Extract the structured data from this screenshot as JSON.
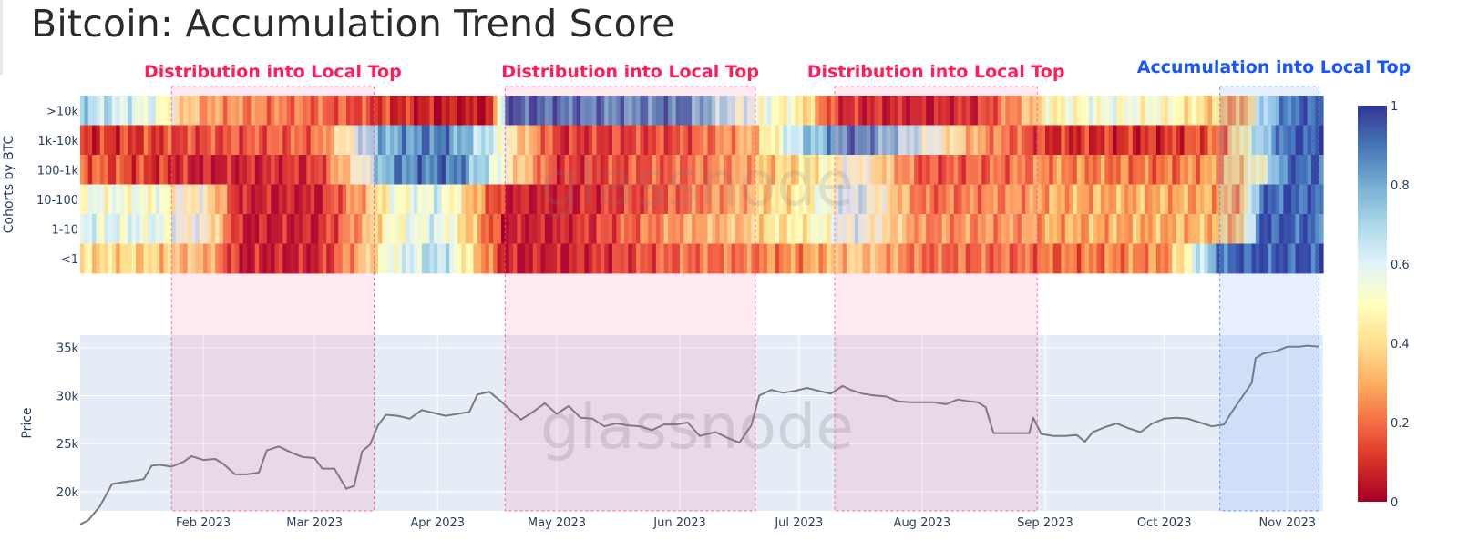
{
  "title": "Bitcoin: Accumulation Trend Score",
  "watermark": "glassnode",
  "colors": {
    "distribution_band": "#ff4f8b",
    "accumulation_band": "#4f86ff",
    "distribution_text": "#ff1c5c",
    "accumulation_text": "#1a56ff",
    "price_line": "#7a7a7a",
    "price_panel_bg": "#e5ecf6"
  },
  "chart_data": [
    {
      "type": "heatmap",
      "ylabel": "Cohorts by BTC",
      "rows": [
        ">10k",
        "1k-10k",
        "100-1k",
        "10-100",
        "1-10",
        "<1"
      ],
      "xrange": [
        "2023-01-01",
        "2023-11-09"
      ],
      "colorscale": "RdYlBu",
      "zrange": [
        0,
        1
      ],
      "colorbar_ticks": [
        "1",
        "0.8",
        "0.6",
        "0.4",
        "0.2",
        "0"
      ],
      "series": [
        {
          "row": ">10k",
          "dates": [
            "2023-01-01",
            "2023-01-20",
            "2023-02-01",
            "2023-03-01",
            "2023-04-01",
            "2023-04-14",
            "2023-04-18",
            "2023-05-01",
            "2023-05-20",
            "2023-06-01",
            "2023-06-15",
            "2023-07-01",
            "2023-07-10",
            "2023-08-01",
            "2023-08-15",
            "2023-09-01",
            "2023-09-15",
            "2023-10-01",
            "2023-10-15",
            "2023-10-20",
            "2023-10-25",
            "2023-11-01",
            "2023-11-09"
          ],
          "values": [
            0.7,
            0.55,
            0.3,
            0.2,
            0.05,
            0.05,
            0.95,
            0.9,
            0.85,
            0.9,
            0.6,
            0.45,
            0.1,
            0.05,
            0.1,
            0.45,
            0.55,
            0.5,
            0.35,
            0.25,
            0.65,
            0.9,
            0.95
          ]
        },
        {
          "row": "1k-10k",
          "dates": [
            "2023-01-01",
            "2023-02-01",
            "2023-03-01",
            "2023-03-15",
            "2023-04-01",
            "2023-04-15",
            "2023-05-01",
            "2023-06-01",
            "2023-06-20",
            "2023-07-01",
            "2023-07-15",
            "2023-08-01",
            "2023-08-15",
            "2023-09-01",
            "2023-10-01",
            "2023-10-15",
            "2023-10-25",
            "2023-11-01",
            "2023-11-09"
          ],
          "values": [
            0.1,
            0.15,
            0.2,
            0.75,
            0.9,
            0.6,
            0.1,
            0.15,
            0.35,
            0.7,
            0.9,
            0.6,
            0.3,
            0.1,
            0.1,
            0.2,
            0.7,
            0.95,
            0.95
          ]
        },
        {
          "row": "100-1k",
          "dates": [
            "2023-01-01",
            "2023-02-01",
            "2023-03-01",
            "2023-03-20",
            "2023-04-05",
            "2023-04-18",
            "2023-05-01",
            "2023-06-01",
            "2023-07-01",
            "2023-07-15",
            "2023-08-01",
            "2023-09-01",
            "2023-10-01",
            "2023-10-15",
            "2023-10-25",
            "2023-11-01",
            "2023-11-09"
          ],
          "values": [
            0.2,
            0.05,
            0.1,
            0.85,
            0.9,
            0.5,
            0.1,
            0.2,
            0.4,
            0.55,
            0.15,
            0.25,
            0.2,
            0.3,
            0.5,
            0.95,
            0.9
          ]
        },
        {
          "row": "10-100",
          "dates": [
            "2023-01-01",
            "2023-02-01",
            "2023-02-10",
            "2023-03-01",
            "2023-03-20",
            "2023-04-01",
            "2023-04-18",
            "2023-05-01",
            "2023-06-01",
            "2023-07-01",
            "2023-07-15",
            "2023-08-01",
            "2023-09-01",
            "2023-10-01",
            "2023-10-20",
            "2023-10-25",
            "2023-11-01",
            "2023-11-09"
          ],
          "values": [
            0.55,
            0.5,
            0.05,
            0.05,
            0.5,
            0.6,
            0.05,
            0.05,
            0.2,
            0.45,
            0.65,
            0.2,
            0.3,
            0.3,
            0.3,
            0.9,
            0.95,
            0.9
          ]
        },
        {
          "row": "1-10",
          "dates": [
            "2023-01-01",
            "2023-02-01",
            "2023-02-10",
            "2023-03-01",
            "2023-03-20",
            "2023-04-01",
            "2023-04-18",
            "2023-05-01",
            "2023-06-01",
            "2023-07-01",
            "2023-07-15",
            "2023-08-01",
            "2023-09-01",
            "2023-10-01",
            "2023-10-20",
            "2023-10-25",
            "2023-11-01",
            "2023-11-09"
          ],
          "values": [
            0.6,
            0.55,
            0.05,
            0.05,
            0.5,
            0.6,
            0.05,
            0.05,
            0.3,
            0.45,
            0.6,
            0.25,
            0.3,
            0.3,
            0.35,
            0.95,
            0.95,
            0.9
          ]
        },
        {
          "row": "<1",
          "dates": [
            "2023-01-01",
            "2023-02-01",
            "2023-02-10",
            "2023-03-01",
            "2023-03-20",
            "2023-04-01",
            "2023-04-18",
            "2023-05-01",
            "2023-06-01",
            "2023-07-01",
            "2023-07-15",
            "2023-08-01",
            "2023-09-01",
            "2023-10-01",
            "2023-10-15",
            "2023-10-20",
            "2023-11-01",
            "2023-11-09"
          ],
          "values": [
            0.4,
            0.35,
            0.05,
            0.05,
            0.55,
            0.7,
            0.05,
            0.05,
            0.2,
            0.25,
            0.4,
            0.2,
            0.2,
            0.25,
            0.9,
            0.95,
            0.95,
            0.95
          ]
        }
      ]
    },
    {
      "type": "line",
      "ylabel": "Price",
      "yticks": [
        {
          "v": 20000,
          "label": "20k"
        },
        {
          "v": 25000,
          "label": "25k"
        },
        {
          "v": 30000,
          "label": "30k"
        },
        {
          "v": 35000,
          "label": "35k"
        }
      ],
      "ylim": [
        18000,
        36300
      ],
      "xlim": [
        "2023-01-01",
        "2023-11-10"
      ],
      "xticks": [
        {
          "date": "2023-02-01",
          "label": "Feb 2023"
        },
        {
          "date": "2023-03-01",
          "label": "Mar 2023"
        },
        {
          "date": "2023-04-01",
          "label": "Apr 2023"
        },
        {
          "date": "2023-05-01",
          "label": "May 2023"
        },
        {
          "date": "2023-06-01",
          "label": "Jun 2023"
        },
        {
          "date": "2023-07-01",
          "label": "Jul 2023"
        },
        {
          "date": "2023-08-01",
          "label": "Aug 2023"
        },
        {
          "date": "2023-09-01",
          "label": "Sep 2023"
        },
        {
          "date": "2023-10-01",
          "label": "Oct 2023"
        },
        {
          "date": "2023-11-01",
          "label": "Nov 2023"
        }
      ],
      "series": [
        {
          "x": [
            "2023-01-01",
            "2023-01-03",
            "2023-01-06",
            "2023-01-09",
            "2023-01-12",
            "2023-01-14",
            "2023-01-17",
            "2023-01-19",
            "2023-01-21",
            "2023-01-24",
            "2023-01-27",
            "2023-01-29",
            "2023-02-01",
            "2023-02-04",
            "2023-02-06",
            "2023-02-09",
            "2023-02-12",
            "2023-02-15",
            "2023-02-17",
            "2023-02-20",
            "2023-02-23",
            "2023-02-26",
            "2023-03-01",
            "2023-03-03",
            "2023-03-06",
            "2023-03-09",
            "2023-03-11",
            "2023-03-13",
            "2023-03-15",
            "2023-03-17",
            "2023-03-19",
            "2023-03-22",
            "2023-03-25",
            "2023-03-28",
            "2023-03-31",
            "2023-04-03",
            "2023-04-06",
            "2023-04-09",
            "2023-04-11",
            "2023-04-14",
            "2023-04-17",
            "2023-04-20",
            "2023-04-22",
            "2023-04-25",
            "2023-04-28",
            "2023-05-01",
            "2023-05-04",
            "2023-05-07",
            "2023-05-10",
            "2023-05-13",
            "2023-05-16",
            "2023-05-19",
            "2023-05-22",
            "2023-05-25",
            "2023-05-28",
            "2023-05-31",
            "2023-06-03",
            "2023-06-06",
            "2023-06-10",
            "2023-06-13",
            "2023-06-16",
            "2023-06-19",
            "2023-06-21",
            "2023-06-24",
            "2023-06-27",
            "2023-06-30",
            "2023-07-03",
            "2023-07-06",
            "2023-07-09",
            "2023-07-12",
            "2023-07-14",
            "2023-07-17",
            "2023-07-20",
            "2023-07-23",
            "2023-07-26",
            "2023-07-29",
            "2023-08-01",
            "2023-08-04",
            "2023-08-07",
            "2023-08-10",
            "2023-08-13",
            "2023-08-15",
            "2023-08-17",
            "2023-08-19",
            "2023-08-22",
            "2023-08-25",
            "2023-08-28",
            "2023-08-29",
            "2023-08-31",
            "2023-09-03",
            "2023-09-06",
            "2023-09-09",
            "2023-09-11",
            "2023-09-13",
            "2023-09-16",
            "2023-09-19",
            "2023-09-22",
            "2023-09-25",
            "2023-09-28",
            "2023-10-01",
            "2023-10-04",
            "2023-10-07",
            "2023-10-10",
            "2023-10-13",
            "2023-10-16",
            "2023-10-18",
            "2023-10-20",
            "2023-10-23",
            "2023-10-24",
            "2023-10-26",
            "2023-10-29",
            "2023-11-01",
            "2023-11-04",
            "2023-11-06",
            "2023-11-09"
          ],
          "y": [
            16600,
            17000,
            18500,
            20800,
            21000,
            21100,
            21300,
            22700,
            22800,
            22600,
            23100,
            23700,
            23300,
            23400,
            22900,
            21800,
            21800,
            22000,
            24300,
            24700,
            24100,
            23600,
            23500,
            22400,
            22400,
            20300,
            20600,
            24200,
            24900,
            26900,
            28000,
            27900,
            27600,
            28500,
            28200,
            27900,
            28100,
            28300,
            30100,
            30400,
            29400,
            28200,
            27500,
            28300,
            29200,
            28100,
            28900,
            27700,
            27600,
            26800,
            27100,
            26900,
            26800,
            26400,
            27000,
            27000,
            27200,
            25800,
            26200,
            25600,
            25100,
            26900,
            30000,
            30600,
            30300,
            30500,
            30800,
            30500,
            30200,
            31000,
            30600,
            30200,
            30000,
            29900,
            29400,
            29300,
            29300,
            29300,
            29100,
            29600,
            29400,
            29300,
            28800,
            26100,
            26100,
            26100,
            26100,
            27700,
            26000,
            25800,
            25800,
            25900,
            25200,
            26200,
            26700,
            27100,
            26600,
            26200,
            27100,
            27600,
            27700,
            27600,
            27200,
            26800,
            27000,
            28300,
            29500,
            31300,
            33900,
            34400,
            34600,
            35100,
            35100,
            35200,
            35100
          ]
        }
      ]
    }
  ],
  "annotations": [
    {
      "label": "Distribution into Local Top",
      "start": "2023-01-24",
      "end": "2023-03-16"
    },
    {
      "label": "Distribution into Local Top",
      "start": "2023-04-18",
      "end": "2023-06-20"
    },
    {
      "label": "Distribution into Local Top",
      "start": "2023-07-10",
      "end": "2023-08-30"
    },
    {
      "label": "Accumulation into Local Top",
      "start": "2023-10-15",
      "end": "2023-11-09"
    }
  ]
}
